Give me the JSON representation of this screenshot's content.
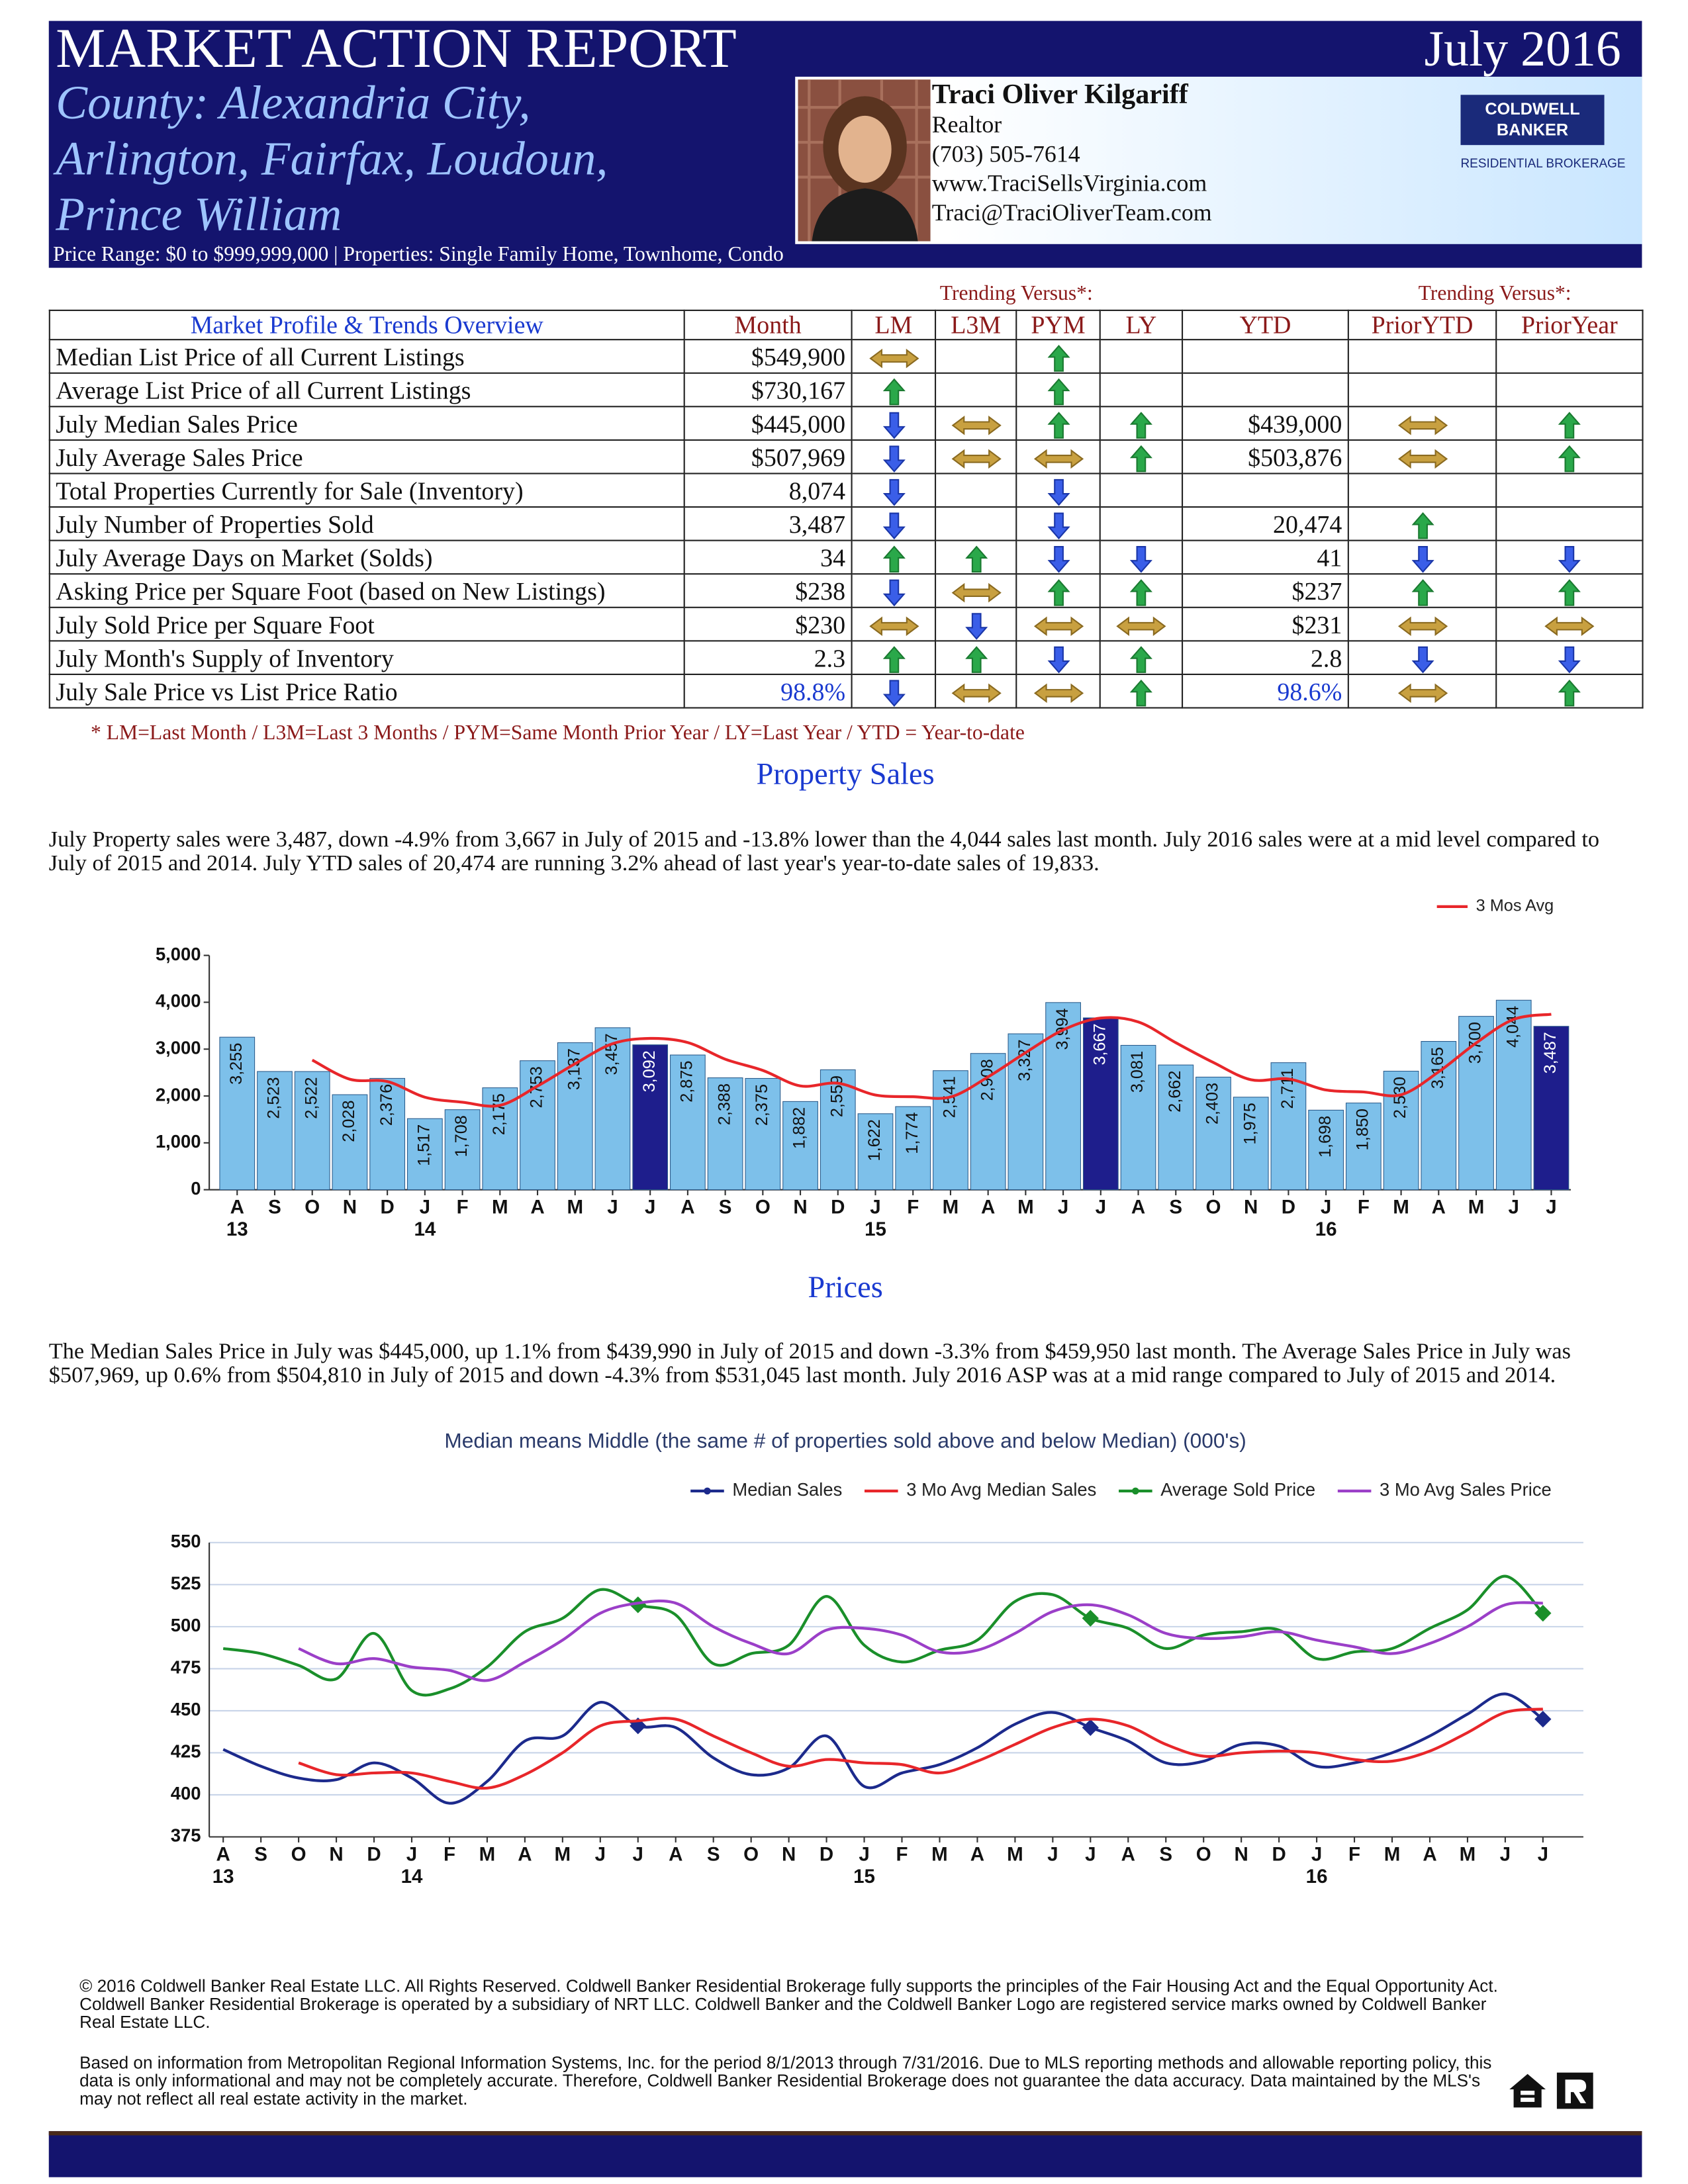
{
  "header": {
    "title": "MARKET ACTION REPORT",
    "date": "July 2016",
    "county": [
      "County: Alexandria City,",
      "Arlington, Fairfax, Loudoun,",
      "Prince William"
    ],
    "price_range": "Price Range: $0 to $999,999,000 | Properties: Single Family Home, Townhome, Condo"
  },
  "agent": {
    "name": "Traci Oliver Kilgariff",
    "role": "Realtor",
    "phone": "(703) 505-7614",
    "website": "www.TraciSellsVirginia.com",
    "email": "Traci@TraciOliverTeam.com",
    "logo": [
      "COLDWELL",
      "BANKER"
    ],
    "logo_sub": "RESIDENTIAL BROKERAGE"
  },
  "table": {
    "trending_label": [
      "Trending Versus*:",
      "Trending Versus*:"
    ],
    "headers": [
      "Market Profile & Trends Overview",
      "Month",
      "LM",
      "L3M",
      "PYM",
      "LY",
      "YTD",
      "PriorYTD",
      "PriorYear"
    ],
    "rows": [
      {
        "cells": [
          "Median List Price of all Current Listings",
          "$549,900",
          "flat",
          null,
          "up",
          null,
          null,
          null,
          null
        ]
      },
      {
        "cells": [
          "Average List Price of all Current Listings",
          "$730,167",
          "up",
          null,
          "up",
          null,
          null,
          null,
          null
        ]
      },
      {
        "cells": [
          "July Median Sales Price",
          "$445,000",
          "down",
          "flat",
          "up",
          "up",
          "$439,000",
          "flat",
          "up"
        ]
      },
      {
        "cells": [
          "July Average Sales Price",
          "$507,969",
          "down",
          "flat",
          "flat",
          "up",
          "$503,876",
          "flat",
          "up"
        ]
      },
      {
        "cells": [
          "Total Properties Currently for Sale (Inventory)",
          "8,074",
          "down",
          null,
          "down",
          null,
          null,
          null,
          null
        ]
      },
      {
        "cells": [
          "July Number of Properties Sold",
          "3,487",
          "down",
          null,
          "down",
          null,
          "20,474",
          "up",
          null
        ]
      },
      {
        "cells": [
          "July Average Days on Market (Solds)",
          "34",
          "up",
          "up",
          "down",
          "down",
          "41",
          "down",
          "down"
        ]
      },
      {
        "cells": [
          "Asking Price per Square Foot (based on New Listings)",
          "$238",
          "down",
          "flat",
          "up",
          "up",
          "$237",
          "up",
          "up"
        ]
      },
      {
        "cells": [
          "July Sold Price per Square Foot",
          "$230",
          "flat",
          "down",
          "flat",
          "flat",
          "$231",
          "flat",
          "flat"
        ]
      },
      {
        "cells": [
          "July Month's Supply of Inventory",
          "2.3",
          "up",
          "up",
          "down",
          "up",
          "2.8",
          "down",
          "down"
        ]
      },
      {
        "cells": [
          "July Sale Price vs List Price Ratio",
          "98.8%",
          "down",
          "flat",
          "flat",
          "up",
          "98.6%",
          "flat",
          "up"
        ],
        "color": "#1a3ad0"
      }
    ],
    "footnote": "* LM=Last Month / L3M=Last 3 Months / PYM=Same Month Prior Year / LY=Last Year / YTD = Year-to-date"
  },
  "sections": [
    {
      "heading": "Property Sales",
      "text": "July Property sales were 3,487, down -4.9% from 3,667 in July of 2015 and -13.8% lower than the  4,044 sales last month.  July 2016 sales were at a mid level compared to July of 2015 and 2014.  July YTD sales of 20,474 are running 3.2% ahead of  last year's year-to-date sales of 19,833."
    },
    {
      "heading": "Prices",
      "text": "The Median Sales Price in July was $445,000, up 1.1% from $439,990 in July of 2015 and down -3.3% from $459,950 last month.  The Average Sales Price in July was $507,969, up 0.6% from $504,810 in July of 2015 and down -4.3% from $531,045 last month.  July 2016 ASP was at a mid range compared to July of 2015 and 2014."
    }
  ],
  "chart_data": [
    {
      "type": "bar",
      "categories": [
        "A",
        "S",
        "O",
        "N",
        "D",
        "J",
        "F",
        "M",
        "A",
        "M",
        "J",
        "J",
        "A",
        "S",
        "O",
        "N",
        "D",
        "J",
        "F",
        "M",
        "A",
        "M",
        "J",
        "J",
        "A",
        "S",
        "O",
        "N",
        "D",
        "J",
        "F",
        "M",
        "A",
        "M",
        "J",
        "J"
      ],
      "year_labels": [
        "13",
        null,
        null,
        null,
        null,
        "14",
        null,
        null,
        null,
        null,
        null,
        null,
        null,
        null,
        null,
        null,
        null,
        "15",
        null,
        null,
        null,
        null,
        null,
        null,
        null,
        null,
        null,
        null,
        null,
        "16",
        null,
        null,
        null,
        null,
        null,
        null
      ],
      "series": [
        {
          "type": "bar",
          "values": [
            3255,
            2523,
            2522,
            2028,
            2376,
            1517,
            1708,
            2175,
            2753,
            3137,
            3457,
            3092,
            2875,
            2388,
            2375,
            1882,
            2559,
            1622,
            1774,
            2541,
            2908,
            3327,
            3994,
            3667,
            3081,
            2662,
            2403,
            1975,
            2711,
            1698,
            1850,
            2530,
            3165,
            3700,
            4044,
            3487
          ],
          "value_labels": [
            "3,255",
            "2,523",
            "2,522",
            "2,028",
            "2,376",
            "1,517",
            "1,708",
            "2,175",
            "2,753",
            "3,137",
            "3,457",
            "3,092",
            "2,875",
            "2,388",
            "2,375",
            "1,882",
            "2,559",
            "1,622",
            "1,774",
            "2,541",
            "2,908",
            "3,327",
            "3,994",
            "3,667",
            "3,081",
            "2,662",
            "2,403",
            "1,975",
            "2,711",
            "1,698",
            "1,850",
            "2,530",
            "3,165",
            "3,700",
            "4,044",
            "3,487"
          ],
          "colors": [
            "#7dc0ea",
            "#7dc0ea",
            "#7dc0ea",
            "#7dc0ea",
            "#7dc0ea",
            "#7dc0ea",
            "#7dc0ea",
            "#7dc0ea",
            "#7dc0ea",
            "#7dc0ea",
            "#7dc0ea",
            "#1e1e8c",
            "#7dc0ea",
            "#7dc0ea",
            "#7dc0ea",
            "#7dc0ea",
            "#7dc0ea",
            "#7dc0ea",
            "#7dc0ea",
            "#7dc0ea",
            "#7dc0ea",
            "#7dc0ea",
            "#7dc0ea",
            "#1e1e8c",
            "#7dc0ea",
            "#7dc0ea",
            "#7dc0ea",
            "#7dc0ea",
            "#7dc0ea",
            "#7dc0ea",
            "#7dc0ea",
            "#7dc0ea",
            "#7dc0ea",
            "#7dc0ea",
            "#7dc0ea",
            "#1e1e8c"
          ]
        },
        {
          "type": "line",
          "name": "3 Mos Avg",
          "color": "#e8262a",
          "values": [
            null,
            null,
            2767,
            2358,
            2309,
            1974,
            1867,
            1800,
            2212,
            2688,
            3116,
            3229,
            3141,
            2785,
            2546,
            2215,
            2272,
            2021,
            1985,
            1979,
            2408,
            2925,
            3410,
            3663,
            3581,
            3137,
            2715,
            2347,
            2363,
            2128,
            2086,
            2026,
            2515,
            3132,
            3636,
            3744
          ]
        }
      ],
      "ylim": [
        0,
        5000
      ],
      "yticks": [
        0,
        {
          "value": 1000,
          "label": "1,000"
        },
        {
          "value": 2000,
          "label": "2,000"
        },
        {
          "value": 3000,
          "label": "3,000"
        },
        {
          "value": 4000,
          "label": "4,000"
        },
        {
          "value": 5000,
          "label": "5,000"
        }
      ],
      "grid": false,
      "legend": "top-right"
    },
    {
      "type": "line",
      "title": "Median means Middle (the same # of properties sold above and below Median) (000's)",
      "categories": [
        "A",
        "S",
        "O",
        "N",
        "D",
        "J",
        "F",
        "M",
        "A",
        "M",
        "J",
        "J",
        "A",
        "S",
        "O",
        "N",
        "D",
        "J",
        "F",
        "M",
        "A",
        "M",
        "J",
        "J",
        "A",
        "S",
        "O",
        "N",
        "D",
        "J",
        "F",
        "M",
        "A",
        "M",
        "J",
        "J"
      ],
      "year_labels": [
        "13",
        null,
        null,
        null,
        null,
        "14",
        null,
        null,
        null,
        null,
        null,
        null,
        null,
        null,
        null,
        null,
        null,
        "15",
        null,
        null,
        null,
        null,
        null,
        null,
        null,
        null,
        null,
        null,
        null,
        "16",
        null,
        null,
        null,
        null,
        null,
        null
      ],
      "series": [
        {
          "name": "Median Sales",
          "color": "#1c2a8c",
          "marker": "diamond",
          "marker_at": [
            11,
            23,
            35
          ],
          "values": [
            427,
            417,
            410,
            409,
            419,
            410,
            395,
            408,
            432,
            435,
            455,
            441,
            440,
            422,
            412,
            416,
            435,
            405,
            413,
            418,
            428,
            442,
            449,
            440,
            432,
            419,
            420,
            430,
            429,
            417,
            419,
            425,
            435,
            448,
            460,
            445
          ]
        },
        {
          "name": "3 Mo Avg Median Sales",
          "color": "#e8262a",
          "values": [
            null,
            null,
            419,
            412,
            413,
            413,
            408,
            404,
            412,
            425,
            441,
            444,
            445,
            435,
            425,
            417,
            421,
            419,
            418,
            413,
            420,
            430,
            440,
            445,
            441,
            430,
            423,
            425,
            426,
            425,
            421,
            420,
            426,
            437,
            449,
            451
          ]
        },
        {
          "name": "Average Sold Price",
          "color": "#1a8f2a",
          "marker": "diamond",
          "marker_at": [
            11,
            23,
            35
          ],
          "values": [
            487,
            484,
            477,
            469,
            496,
            462,
            463,
            476,
            497,
            505,
            522,
            513,
            507,
            478,
            484,
            489,
            518,
            489,
            479,
            486,
            492,
            515,
            519,
            505,
            499,
            487,
            495,
            497,
            498,
            481,
            485,
            487,
            499,
            510,
            530,
            508
          ]
        },
        {
          "name": "3 Mo Avg Sales Price",
          "color": "#9b3fc8",
          "values": [
            null,
            null,
            487,
            478,
            481,
            476,
            474,
            468,
            479,
            492,
            508,
            514,
            514,
            500,
            490,
            484,
            498,
            499,
            495,
            485,
            486,
            496,
            509,
            513,
            507,
            496,
            493,
            494,
            497,
            492,
            488,
            484,
            490,
            500,
            513,
            514
          ]
        }
      ],
      "ylim": [
        375,
        550
      ],
      "yticks": [
        375,
        400,
        425,
        450,
        475,
        500,
        525,
        550
      ],
      "grid": true,
      "legend": "top"
    }
  ],
  "footer": [
    "© 2016 Coldwell Banker Real Estate LLC.   All Rights Reserved. Coldwell Banker Residential Brokerage fully supports the principles of the Fair Housing Act and the Equal Opportunity Act.  Coldwell Banker Residential Brokerage is operated by a subsidiary of NRT LLC.  Coldwell Banker and the Coldwell Banker Logo are registered service marks owned by Coldwell Banker Real Estate LLC.",
    "Based on information from Metropolitan Regional Information Systems, Inc. for the period 8/1/2013 through 7/31/2016.  Due to MLS reporting methods and allowable reporting policy, this data is only informational and may not be completely accurate.  Therefore, Coldwell Banker Residential Brokerage does not guarantee the data accuracy.   Data maintained by the MLS's may not reflect all real estate activity in the market."
  ]
}
